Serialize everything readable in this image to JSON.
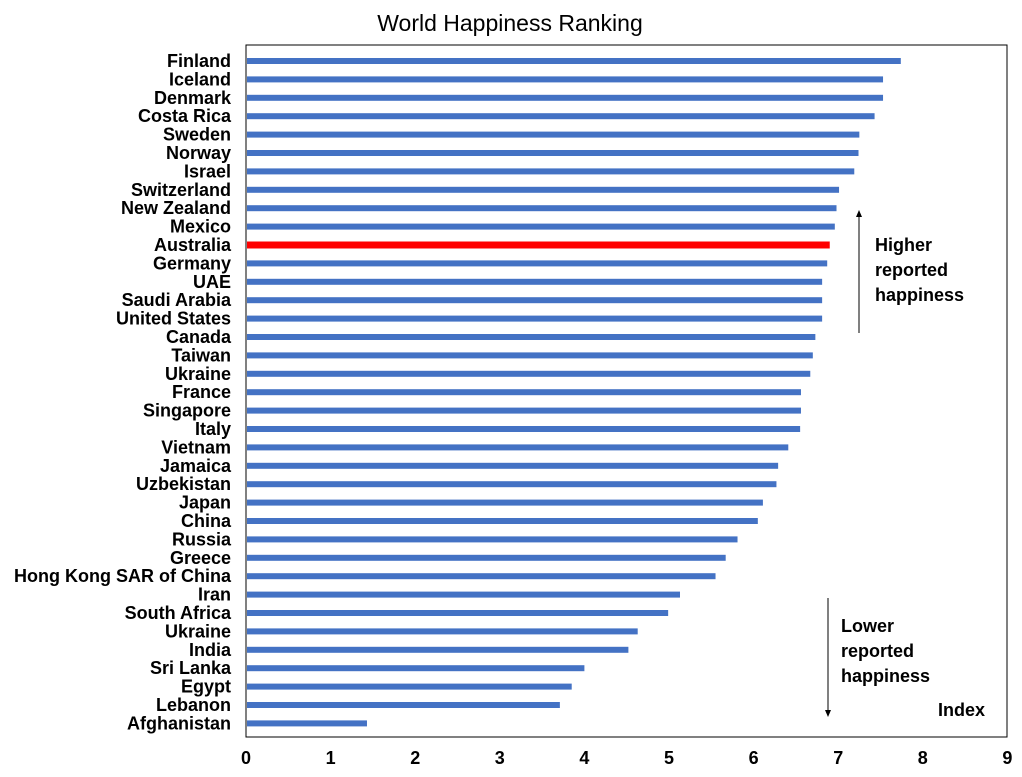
{
  "chart_data": {
    "type": "bar",
    "orientation": "horizontal",
    "title": "World Happiness Ranking",
    "xlabel": "",
    "ylabel": "",
    "unit_label": "Index",
    "xlim": [
      0,
      9
    ],
    "xticks": [
      0,
      1,
      2,
      3,
      4,
      5,
      6,
      7,
      8,
      9
    ],
    "grid": false,
    "legend": "none",
    "bar_color": "#4472C4",
    "highlight_color": "#FF0000",
    "highlight_category": "Australia",
    "categories": [
      "Finland",
      "Iceland",
      "Denmark",
      "Costa Rica",
      "Sweden",
      "Norway",
      "Israel",
      "Switzerland",
      "New Zealand",
      "Mexico",
      "Australia",
      "Germany",
      "UAE",
      "Saudi Arabia",
      "United States",
      "Canada",
      "Taiwan",
      "Ukraine",
      "France",
      "Singapore",
      "Italy",
      "Vietnam",
      "Jamaica",
      "Uzbekistan",
      "Japan",
      "China",
      "Russia",
      "Greece",
      "Hong Kong SAR of China",
      "Iran",
      "South Africa",
      "Ukraine",
      "India",
      "Sri Lanka",
      "Egypt",
      "Lebanon",
      "Afghanistan"
    ],
    "values": [
      7.74,
      7.53,
      7.53,
      7.43,
      7.25,
      7.24,
      7.19,
      7.01,
      6.98,
      6.96,
      6.9,
      6.87,
      6.81,
      6.81,
      6.81,
      6.73,
      6.7,
      6.67,
      6.56,
      6.56,
      6.55,
      6.41,
      6.29,
      6.27,
      6.11,
      6.05,
      5.81,
      5.67,
      5.55,
      5.13,
      4.99,
      4.63,
      4.52,
      4.0,
      3.85,
      3.71,
      1.43
    ],
    "annotations": [
      {
        "name": "higher",
        "lines": [
          "Higher",
          "reported",
          "happiness"
        ],
        "direction": "up"
      },
      {
        "name": "lower",
        "lines": [
          "Lower",
          "reported",
          "happiness"
        ],
        "direction": "down"
      }
    ]
  }
}
